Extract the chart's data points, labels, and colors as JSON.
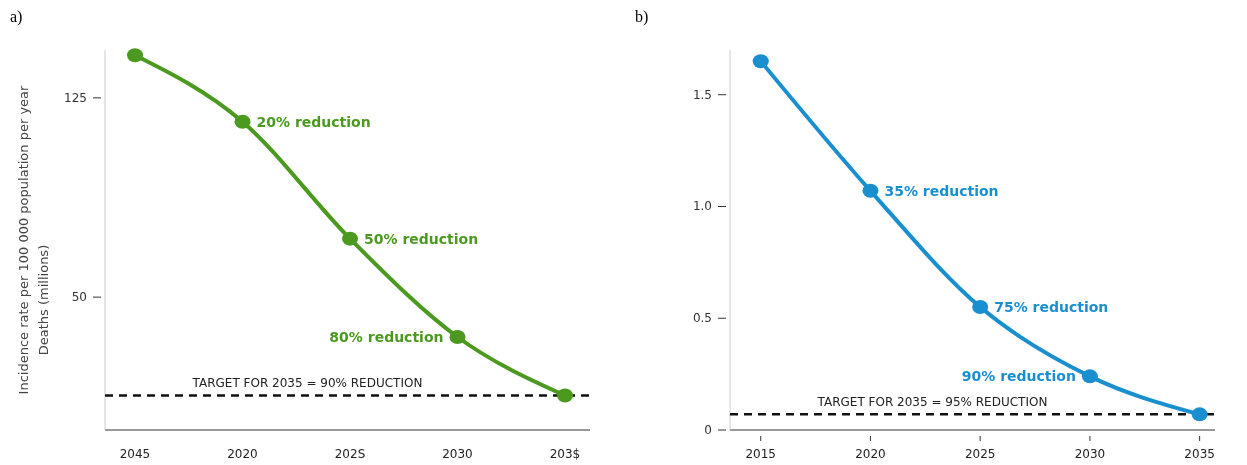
{
  "chart_data": [
    {
      "type": "line",
      "title": "a)",
      "ylabel": "Incidence rate per 100 000 population per year",
      "categories": [
        "2045",
        "2020",
        "202S",
        "2030",
        "203$"
      ],
      "series": [
        {
          "color": "#4b9a1f",
          "values": [
            141,
            116,
            72,
            35,
            13
          ]
        }
      ],
      "ylim": [
        0,
        143
      ],
      "yticks": [
        50,
        125
      ],
      "marker": "circle",
      "line_style": "solid",
      "ref_lines": [
        {
          "axis": "y",
          "value": 13,
          "color": "#111111",
          "line_style": "dashed"
        }
      ],
      "annotations": [
        "Deaths (millions)",
        {
          "text": "TARGET FOR 2035 = 90% REDUCTION",
          "y": 13
        },
        {
          "text": "20% reduction",
          "x": "2020",
          "y": 116
        },
        {
          "text": "50% reduction",
          "x": "202S",
          "y": 72
        },
        {
          "text": "80% reduction",
          "x": "2030",
          "y": 35
        }
      ]
    },
    {
      "type": "line",
      "title": "b)",
      "x": [
        2015,
        2020,
        2025,
        2030,
        2035
      ],
      "series": [
        {
          "color": "#1a8fcf",
          "values": [
            1.65,
            1.07,
            0.55,
            0.24,
            0.07
          ]
        }
      ],
      "xlim": [
        2013.6,
        2035.7
      ],
      "xticks": [
        2015,
        2020,
        2025,
        2030,
        2035
      ],
      "ylim": [
        0,
        1.7
      ],
      "yticks": [
        0,
        {
          "value": 0.5,
          "label": "0.5"
        },
        {
          "value": 1,
          "label": "1.0"
        },
        1.5
      ],
      "marker": "circle",
      "line_style": "solid",
      "ref_lines": [
        {
          "axis": "y",
          "value": 0.07,
          "color": "#111111",
          "line_style": "dashed"
        }
      ],
      "annotations": [
        {
          "text": "TARGET FOR 2035 = 95% REDUCTION",
          "y": 0.07
        },
        {
          "text": "35% reduction",
          "x": 2020,
          "y": 1.07
        },
        {
          "text": "75% reduction",
          "x": 2025,
          "y": 0.55
        },
        {
          "text": "90% reduction",
          "x": 2030,
          "y": 0.24
        }
      ]
    }
  ]
}
